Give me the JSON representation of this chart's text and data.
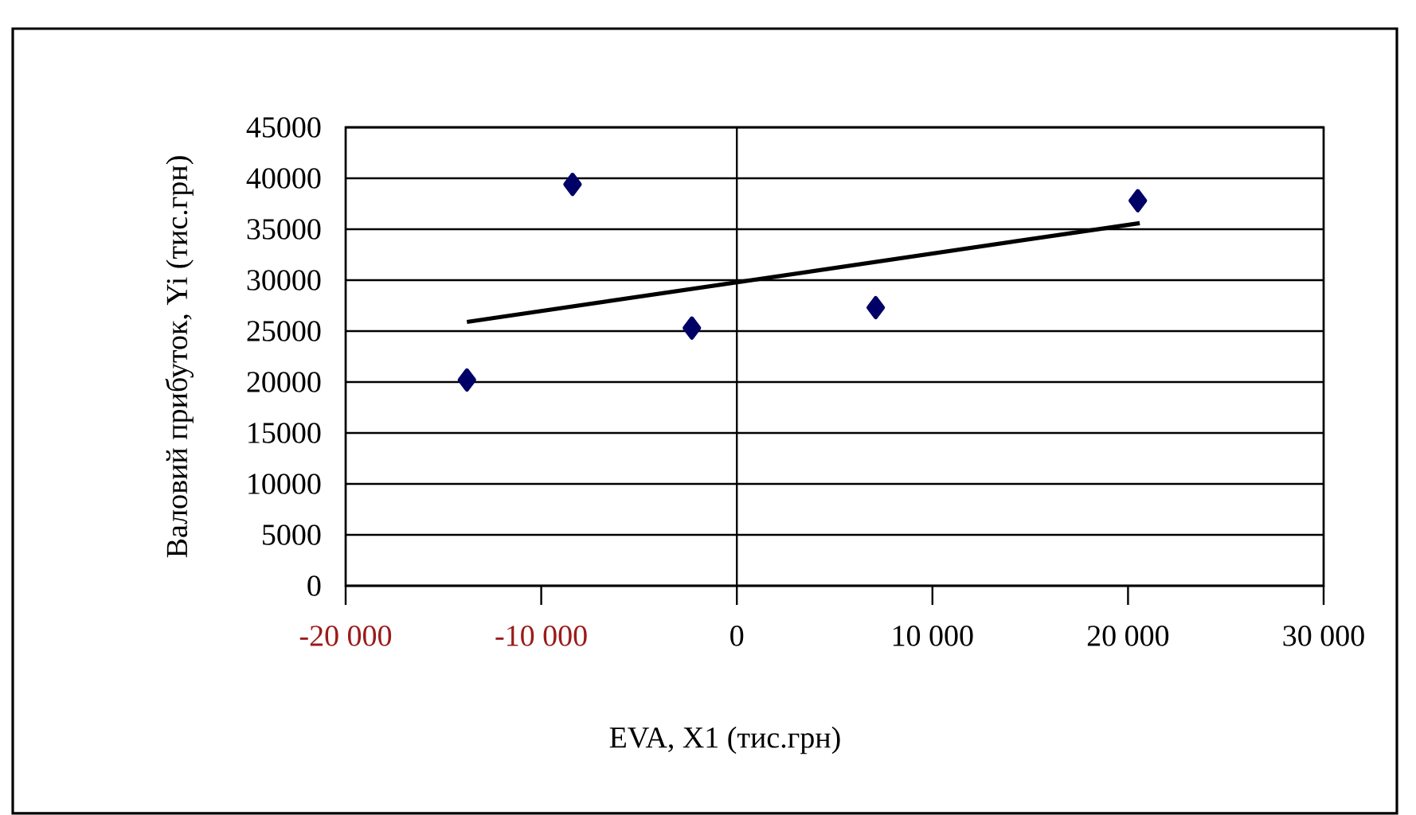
{
  "chart_data": {
    "type": "scatter",
    "xlabel": "EVA, X1 (тис.грн)",
    "ylabel": "Валовий прибуток, Yi (тис.грн)",
    "xlim": [
      -20000,
      30000
    ],
    "ylim": [
      0,
      45000
    ],
    "xticks": [
      {
        "value": -20000,
        "label": "-20 000"
      },
      {
        "value": -10000,
        "label": "-10 000"
      },
      0,
      {
        "value": 10000,
        "label": "10 000"
      },
      {
        "value": 20000,
        "label": "20 000"
      },
      {
        "value": 30000,
        "label": "30 000"
      }
    ],
    "yticks": [
      0,
      5000,
      10000,
      15000,
      20000,
      25000,
      30000,
      35000,
      40000,
      45000
    ],
    "grid": "y",
    "marker": "diamond",
    "ref_lines": [
      {
        "axis": "x",
        "value": 0
      }
    ],
    "series": [
      {
        "type": "scatter",
        "color": "#000066",
        "x": [
          -13800,
          -8400,
          -2300,
          7100,
          20500
        ],
        "values": [
          20200,
          39400,
          25300,
          27300,
          37800
        ]
      },
      {
        "type": "line",
        "color": "#000000",
        "marker": "none",
        "x": [
          -13800,
          20600
        ],
        "values": [
          25900,
          35600
        ]
      }
    ]
  }
}
